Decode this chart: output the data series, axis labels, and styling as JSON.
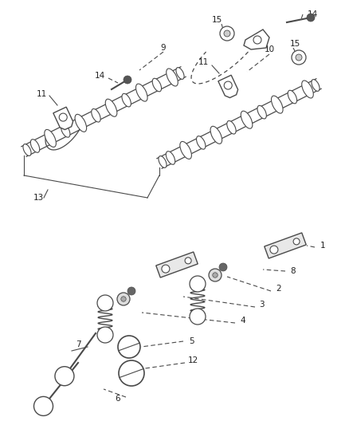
{
  "bg_color": "#ffffff",
  "lc": "#4a4a4a",
  "fig_w": 4.38,
  "fig_h": 5.33,
  "dpi": 100
}
